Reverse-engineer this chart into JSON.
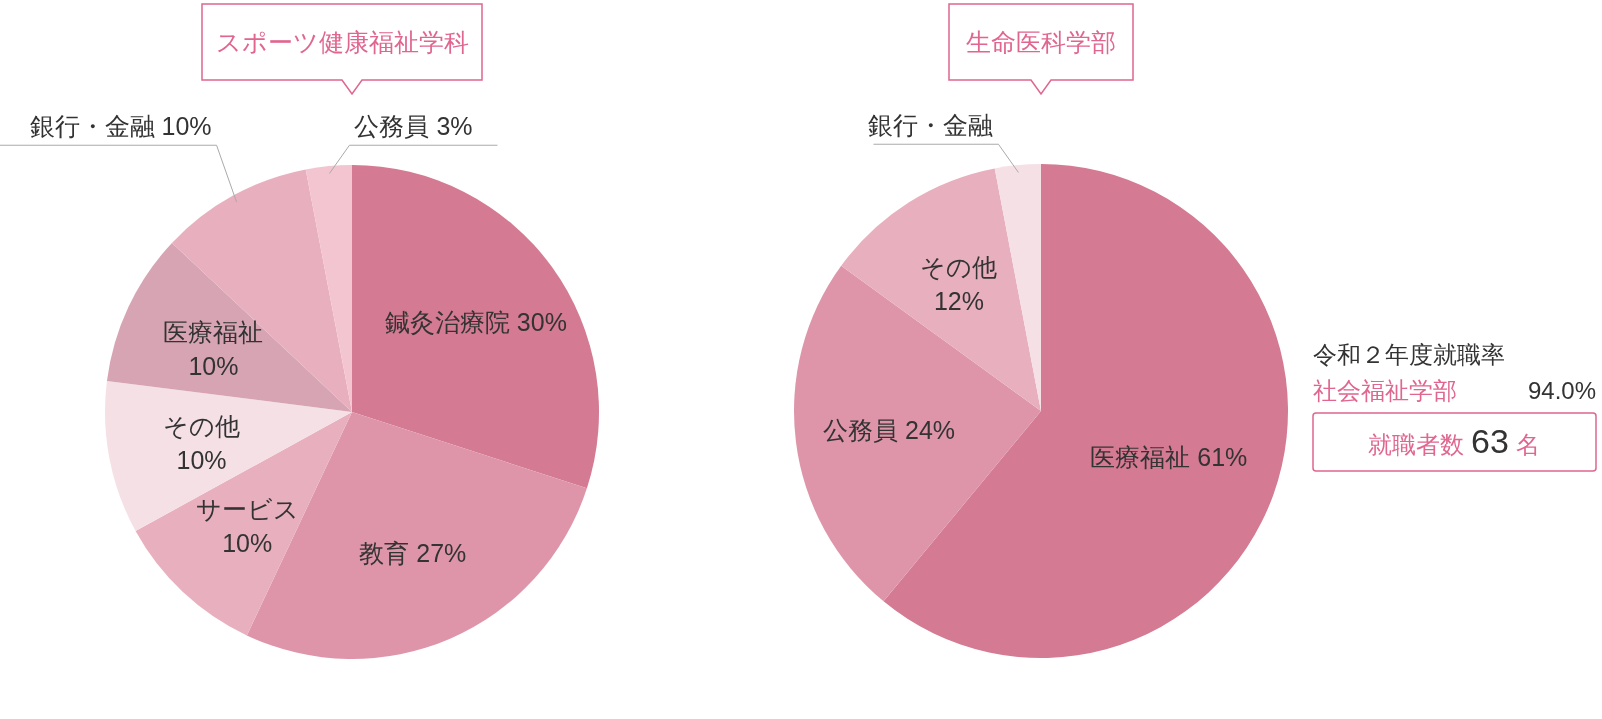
{
  "chart_data": [
    {
      "type": "pie",
      "title": "スポーツ健康福祉学科",
      "categories": [
        "鍼灸治療院",
        "教育",
        "サービス",
        "その他",
        "医療福祉",
        "銀行・金融",
        "公務員"
      ],
      "values": [
        30,
        27,
        10,
        10,
        10,
        10,
        3
      ],
      "colors": [
        "#d47a93",
        "#de95aa",
        "#e8afbe",
        "#f5e0e6",
        "#d6a4b3",
        "#e8afbe",
        "#f2c5d1"
      ],
      "value_labels": [
        "30%",
        "27%",
        "10%",
        "10%",
        "10%",
        "10%",
        "3%"
      ]
    },
    {
      "type": "pie",
      "title": "生命医科学部",
      "categories": [
        "医療福祉",
        "公務員",
        "その他",
        "銀行・金融"
      ],
      "values": [
        61,
        24,
        12,
        3
      ],
      "colors": [
        "#d47a93",
        "#de95aa",
        "#e8afbe",
        "#f5e0e6"
      ],
      "value_labels": [
        "61%",
        "24%",
        "12%",
        null
      ]
    },
    {
      "type": "other",
      "annotations": [
        "令和２年度就職率",
        "社会福祉学部",
        "94.0%",
        "就職者数",
        "63",
        "名"
      ]
    }
  ]
}
